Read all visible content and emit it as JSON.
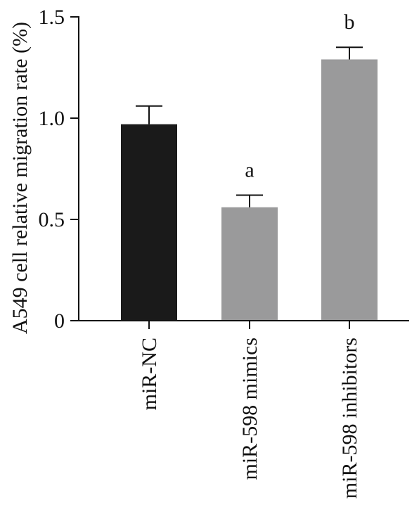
{
  "chart_data": {
    "type": "bar",
    "title": "",
    "xlabel": "",
    "ylabel": "A549 cell relative migration rate (%)",
    "categories": [
      "miR-NC",
      "miR-598 mimics",
      "miR-598 inhibitors"
    ],
    "values": [
      0.97,
      0.56,
      1.29
    ],
    "errors": [
      0.09,
      0.06,
      0.06
    ],
    "significance": [
      "",
      "a",
      "b"
    ],
    "bar_colors": [
      "#1a1a1a",
      "#9a9a9b",
      "#9a9a9b"
    ],
    "ylim": [
      0,
      1.5
    ],
    "yticks": [
      0,
      0.5,
      1.0,
      1.5
    ],
    "ytick_labels": [
      "0",
      "0.5",
      "1.0",
      "1.5"
    ],
    "grid": false,
    "legend": "none"
  }
}
